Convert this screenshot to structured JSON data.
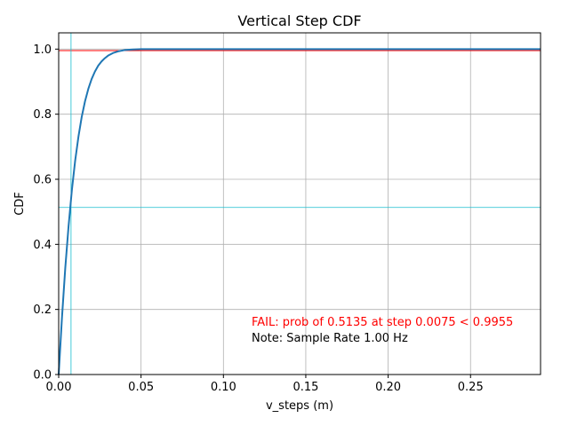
{
  "chart_data": {
    "type": "line",
    "title": "Vertical Step CDF",
    "xlabel": "v_steps (m)",
    "ylabel": "CDF",
    "xlim": [
      0,
      0.2925
    ],
    "ylim": [
      0,
      1.05
    ],
    "grid": true,
    "x_ticks": [
      0.0,
      0.05,
      0.1,
      0.15,
      0.2,
      0.25
    ],
    "x_tick_labels": [
      "0.00",
      "0.05",
      "0.10",
      "0.15",
      "0.20",
      "0.25"
    ],
    "y_ticks": [
      0.0,
      0.2,
      0.4,
      0.6,
      0.8,
      1.0
    ],
    "y_tick_labels": [
      "0.0",
      "0.2",
      "0.4",
      "0.6",
      "0.8",
      "1.0"
    ],
    "series": [
      {
        "color": "#1f77b4",
        "x": [
          0,
          0.002,
          0.004,
          0.006,
          0.008,
          0.01,
          0.012,
          0.014,
          0.016,
          0.018,
          0.02,
          0.022,
          0.024,
          0.026,
          0.028,
          0.03,
          0.033,
          0.036,
          0.04,
          0.045,
          0.05,
          0.06,
          0.08,
          0.1,
          0.15,
          0.2,
          0.25,
          0.2925
        ],
        "y": [
          0,
          0.175,
          0.327,
          0.456,
          0.566,
          0.657,
          0.731,
          0.792,
          0.84,
          0.878,
          0.908,
          0.931,
          0.949,
          0.962,
          0.972,
          0.98,
          0.988,
          0.993,
          0.997,
          0.999,
          1.0,
          1.0,
          1.0,
          1.0,
          1.0,
          1.0,
          1.0,
          1.0
        ]
      }
    ],
    "reference_lines": {
      "threshold_prob": 0.9955,
      "threshold_color": "#ff0000",
      "step_value": 0.0075,
      "step_prob": 0.5135,
      "marker_color": "#17becf"
    },
    "annotations": [
      {
        "text": "FAIL: prob of 0.5135 at step 0.0075 < 0.9955",
        "color": "#ff0000"
      },
      {
        "text": "Note: Sample Rate 1.00 Hz",
        "color": "#000000"
      }
    ]
  }
}
